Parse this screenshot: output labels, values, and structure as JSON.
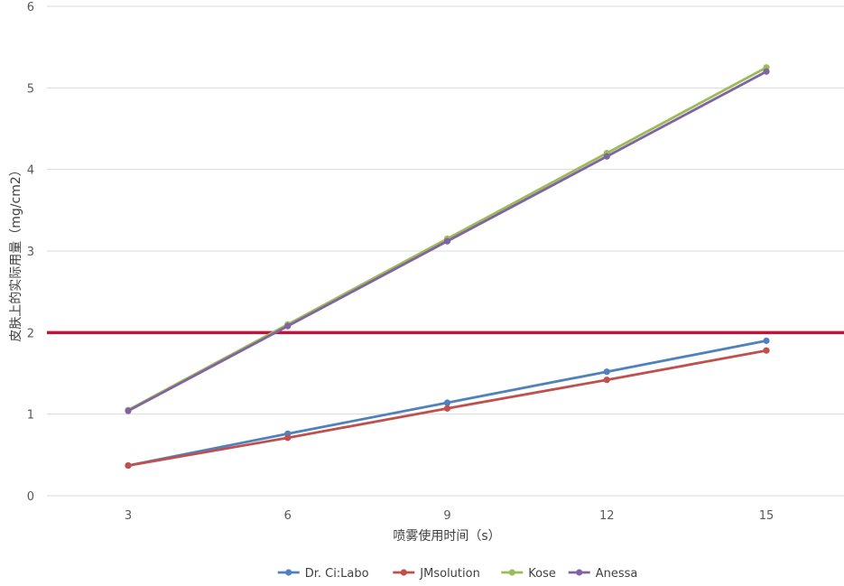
{
  "chart_data": {
    "type": "line",
    "title": "",
    "xlabel": "喷雾使用时间（s）",
    "ylabel": "皮肤上的实际用量（mg/cm2）",
    "categories": [
      "3",
      "6",
      "9",
      "12",
      "15"
    ],
    "x": [
      3,
      6,
      9,
      12,
      15
    ],
    "ylim": [
      0,
      6
    ],
    "yticks": [
      "0",
      "1",
      "2",
      "3",
      "4",
      "5",
      "6"
    ],
    "grid": true,
    "legend_position": "bottom",
    "reference_line": {
      "y": 2,
      "color": "#c0143c"
    },
    "series": [
      {
        "name": "Dr. Ci:Labo",
        "color": "#4f81bd",
        "values": [
          0.37,
          0.76,
          1.14,
          1.52,
          1.9
        ]
      },
      {
        "name": "JMsolution",
        "color": "#c0504d",
        "values": [
          0.37,
          0.71,
          1.07,
          1.42,
          1.78
        ]
      },
      {
        "name": "Kose",
        "color": "#9bbb59",
        "values": [
          1.05,
          2.1,
          3.15,
          4.2,
          5.25
        ]
      },
      {
        "name": "Anessa",
        "color": "#8064a2",
        "values": [
          1.04,
          2.08,
          3.12,
          4.16,
          5.2
        ]
      }
    ]
  }
}
